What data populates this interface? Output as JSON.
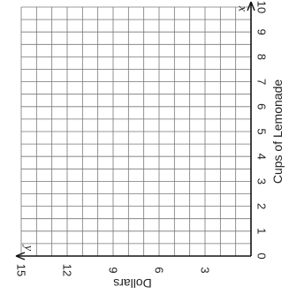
{
  "chart_data": {
    "type": "scatter",
    "series": [],
    "grid": true,
    "x_axis": {
      "variable": "x",
      "label": "Cups of Lemonade",
      "range": [
        0,
        10
      ],
      "ticks": [
        0,
        1,
        2,
        3,
        4,
        5,
        6,
        7,
        8,
        9,
        10
      ],
      "tick_labels": [
        "0",
        "1",
        "2",
        "3",
        "4",
        "5",
        "6",
        "7",
        "8",
        "9",
        "10"
      ],
      "minor_divisions_per_unit": 2
    },
    "y_axis": {
      "variable": "y",
      "label": "Dollars",
      "range": [
        0,
        15
      ],
      "ticks": [
        3,
        6,
        9,
        12,
        15
      ],
      "tick_labels": [
        "3",
        "6",
        "9",
        "12",
        "15"
      ],
      "minor_divisions_per_label": 3
    },
    "colors": {
      "grid": "#777777",
      "axis": "#111111",
      "text": "#222222"
    }
  }
}
